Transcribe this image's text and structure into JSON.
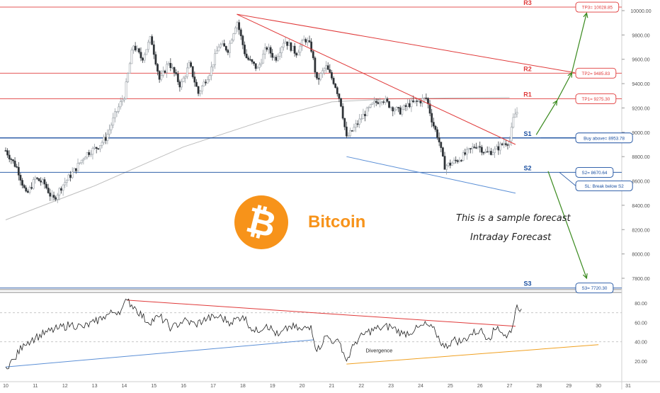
{
  "chart_data": [
    {
      "type": "candlestick",
      "title": "",
      "ylim": [
        7700,
        10050
      ],
      "xlim": [
        10,
        31
      ],
      "x_ticks": [
        "10",
        "11",
        "12",
        "13",
        "14",
        "15",
        "16",
        "17",
        "18",
        "19",
        "20",
        "21",
        "22",
        "23",
        "24",
        "25",
        "26",
        "27",
        "28",
        "29",
        "30",
        "31"
      ],
      "y_ticks": [
        {
          "value": 7800,
          "label": "7800.00"
        },
        {
          "value": 8000,
          "label": "8000.00"
        },
        {
          "value": 8200,
          "label": "8200.00"
        },
        {
          "value": 8400,
          "label": "8400.00"
        },
        {
          "value": 8600,
          "label": "8600.00"
        },
        {
          "value": 8800,
          "label": "8800.00"
        },
        {
          "value": 9000,
          "label": "9000.00"
        },
        {
          "value": 9200,
          "label": "9200.00"
        },
        {
          "value": 9400,
          "label": "9400.00"
        },
        {
          "value": 9600,
          "label": "9600.00"
        },
        {
          "value": 9800,
          "label": "9800.00"
        },
        {
          "value": 10000,
          "label": "10000.00"
        }
      ],
      "price_path": [
        [
          10.0,
          8850
        ],
        [
          10.4,
          8700
        ],
        [
          10.7,
          8480
        ],
        [
          11.0,
          8620
        ],
        [
          11.3,
          8580
        ],
        [
          11.6,
          8440
        ],
        [
          11.9,
          8560
        ],
        [
          12.3,
          8680
        ],
        [
          12.7,
          8820
        ],
        [
          13.1,
          8880
        ],
        [
          13.4,
          8960
        ],
        [
          13.7,
          9150
        ],
        [
          14.0,
          9300
        ],
        [
          14.3,
          9720
        ],
        [
          14.6,
          9600
        ],
        [
          14.9,
          9780
        ],
        [
          15.2,
          9420
        ],
        [
          15.5,
          9580
        ],
        [
          15.9,
          9380
        ],
        [
          16.2,
          9560
        ],
        [
          16.5,
          9320
        ],
        [
          16.9,
          9500
        ],
        [
          17.2,
          9720
        ],
        [
          17.5,
          9680
        ],
        [
          17.8,
          9920
        ],
        [
          18.1,
          9620
        ],
        [
          18.5,
          9520
        ],
        [
          18.8,
          9700
        ],
        [
          19.1,
          9600
        ],
        [
          19.4,
          9760
        ],
        [
          19.8,
          9650
        ],
        [
          20.1,
          9770
        ],
        [
          20.3,
          9700
        ],
        [
          20.5,
          9420
        ],
        [
          20.8,
          9540
        ],
        [
          21.1,
          9400
        ],
        [
          21.3,
          9250
        ],
        [
          21.5,
          8950
        ],
        [
          21.8,
          9050
        ],
        [
          22.1,
          9150
        ],
        [
          22.4,
          9230
        ],
        [
          22.7,
          9280
        ],
        [
          23.0,
          9210
        ],
        [
          23.3,
          9170
        ],
        [
          23.6,
          9230
        ],
        [
          23.9,
          9250
        ],
        [
          24.2,
          9280
        ],
        [
          24.4,
          9080
        ],
        [
          24.6,
          8950
        ],
        [
          24.8,
          8720
        ],
        [
          25.0,
          8740
        ],
        [
          25.3,
          8780
        ],
        [
          25.6,
          8840
        ],
        [
          25.9,
          8900
        ],
        [
          26.2,
          8830
        ],
        [
          26.5,
          8850
        ],
        [
          26.8,
          8910
        ],
        [
          27.0,
          8930
        ],
        [
          27.15,
          9140
        ],
        [
          27.3,
          9180
        ]
      ],
      "horizontal_levels": [
        {
          "label": "R3",
          "value": 10028.85,
          "color": "#e03a3a"
        },
        {
          "label": "R2",
          "value": 9485.83,
          "color": "#e03a3a"
        },
        {
          "label": "R1",
          "value": 9275.3,
          "color": "#e03a3a"
        },
        {
          "label": "S1",
          "value": 8953.78,
          "color": "#1a4fa0"
        },
        {
          "label": "S2",
          "value": 8670.64,
          "color": "#1a4fa0"
        },
        {
          "label": "S3",
          "value": 7720.3,
          "color": "#1a4fa0"
        }
      ],
      "trend_lines": [
        {
          "from": [
            17.8,
            9970
          ],
          "to": [
            27.2,
            8900
          ],
          "color": "#e03a3a"
        },
        {
          "from": [
            17.8,
            9970
          ],
          "to": [
            29.2,
            9490
          ],
          "color": "#e03a3a"
        },
        {
          "from": [
            21.5,
            8800
          ],
          "to": [
            27.2,
            8500
          ],
          "color": "#5b8fd6"
        }
      ],
      "moving_average": [
        [
          10.0,
          8280
        ],
        [
          13.0,
          8560
        ],
        [
          16.0,
          8880
        ],
        [
          19.0,
          9120
        ],
        [
          21.0,
          9250
        ],
        [
          23.0,
          9275
        ],
        [
          25.0,
          9282
        ],
        [
          27.0,
          9285
        ]
      ],
      "annotations": [
        {
          "text": "TP3= 10028.85",
          "value": 10028.85,
          "color": "#e03a3a"
        },
        {
          "text": "TP2= 9485.83",
          "value": 9485.83,
          "color": "#e03a3a"
        },
        {
          "text": "TP1= 9275.30",
          "value": 9275.3,
          "color": "#e03a3a"
        },
        {
          "text": "Buy above= 8953.78",
          "value": 8953.78,
          "color": "#1a4fa0"
        },
        {
          "text": "S2= 8670.64",
          "value": 8670.64,
          "color": "#1a4fa0"
        },
        {
          "text": "SL: Break below S2",
          "value": 8560,
          "color": "#1a4fa0"
        },
        {
          "text": "S3= 7720.30",
          "value": 7720.3,
          "color": "#1a4fa0"
        }
      ],
      "forecast_arrows": [
        {
          "from": [
            27.9,
            8980
          ],
          "to": [
            28.6,
            9260
          ],
          "color": "#3a8a1e"
        },
        {
          "from": [
            28.6,
            9260
          ],
          "to": [
            29.1,
            9490
          ],
          "color": "#3a8a1e"
        },
        {
          "from": [
            29.1,
            9490
          ],
          "to": [
            29.6,
            9980
          ],
          "color": "#3a8a1e"
        },
        {
          "from": [
            28.3,
            8680
          ],
          "to": [
            29.6,
            7800
          ],
          "color": "#3a8a1e"
        }
      ]
    },
    {
      "type": "line",
      "title": "",
      "ylim": [
        10,
        90
      ],
      "y_ticks": [
        {
          "value": 20,
          "label": "20.00"
        },
        {
          "value": 40,
          "label": "40.00"
        },
        {
          "value": 60,
          "label": "60.00"
        },
        {
          "value": 80,
          "label": "80.00"
        }
      ],
      "series": [
        {
          "values_x": [
            10.0,
            10.3,
            10.6,
            11.0,
            11.4,
            11.8,
            12.2,
            12.6,
            13.0,
            13.3,
            13.6,
            13.9,
            14.1,
            14.4,
            14.8,
            15.2,
            15.6,
            16.0,
            16.4,
            16.8,
            17.2,
            17.6,
            18.0,
            18.4,
            18.8,
            19.2,
            19.6,
            20.0,
            20.3,
            20.5,
            20.8,
            21.1,
            21.3,
            21.5,
            21.8,
            22.2,
            22.6,
            23.0,
            23.4,
            23.8,
            24.2,
            24.5,
            24.8,
            25.1,
            25.4,
            25.7,
            26.0,
            26.3,
            26.6,
            26.9,
            27.1,
            27.25,
            27.4
          ],
          "values_y": [
            14,
            22,
            38,
            44,
            50,
            54,
            58,
            55,
            60,
            66,
            70,
            73,
            83,
            74,
            60,
            66,
            54,
            62,
            58,
            64,
            66,
            60,
            67,
            50,
            58,
            46,
            56,
            52,
            57,
            30,
            46,
            40,
            38,
            20,
            40,
            50,
            54,
            56,
            48,
            52,
            58,
            50,
            34,
            42,
            40,
            48,
            52,
            44,
            56,
            44,
            56,
            78,
            74
          ]
        }
      ],
      "trend_lines": [
        {
          "from": [
            10.0,
            14
          ],
          "to": [
            20.4,
            42
          ],
          "color": "#5b8fd6"
        },
        {
          "from": [
            14.1,
            83
          ],
          "to": [
            27.2,
            56
          ],
          "color": "#e03a3a"
        },
        {
          "from": [
            21.5,
            17
          ],
          "to": [
            30.0,
            37
          ],
          "color": "#f0a020"
        }
      ],
      "annotations": [
        {
          "text": "Divergence",
          "x": 22.6,
          "y": 29
        }
      ]
    }
  ],
  "branding": {
    "name": "Bitcoin",
    "logo_glyph": "₿",
    "brand_color": "#f7931a"
  },
  "notes": {
    "line1": "This is a sample forecast",
    "line2": "Intraday Forecast"
  }
}
